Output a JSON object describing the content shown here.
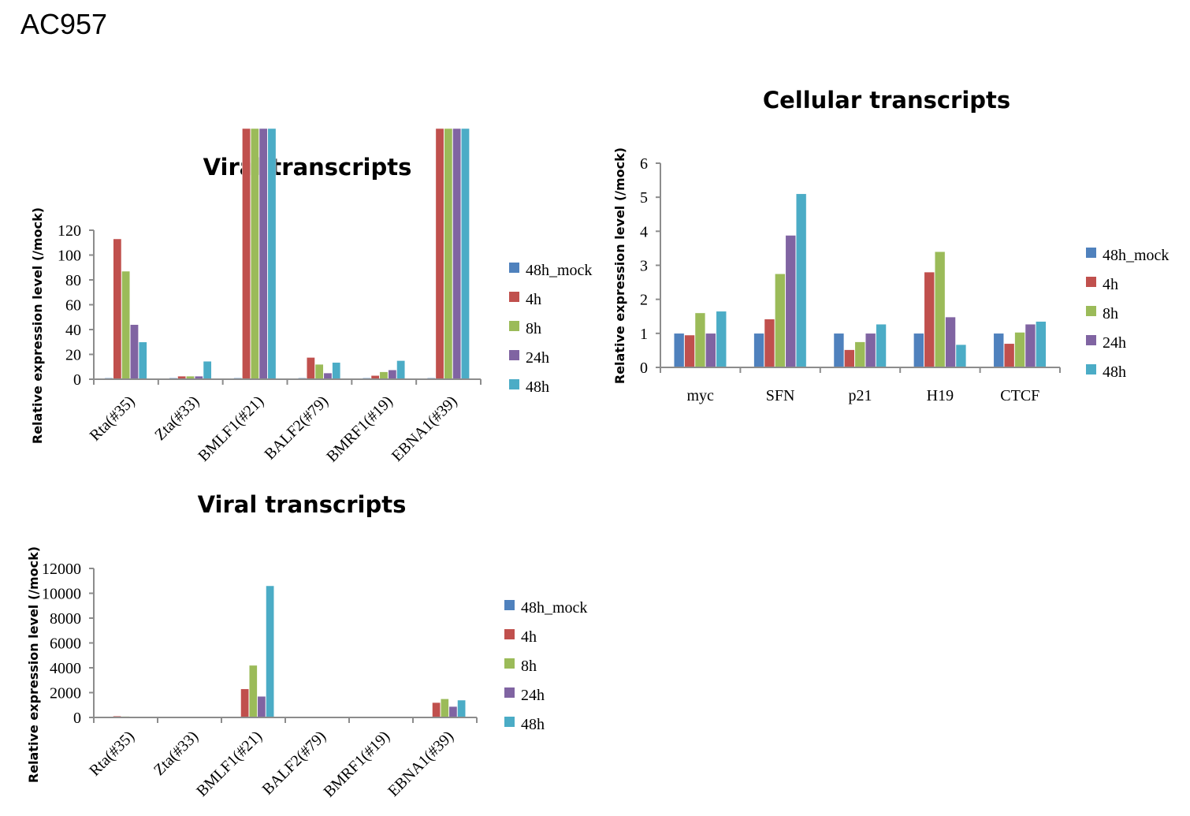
{
  "page": {
    "title": "AC957"
  },
  "legend_colors": [
    "#4f81bd",
    "#c0504d",
    "#9bbb59",
    "#8064a2",
    "#4bacc6"
  ],
  "chart_data": [
    {
      "id": "viral-zoomed",
      "type": "bar",
      "title": "Viral transcripts",
      "xlabel": "",
      "ylabel": "Relative expression level (/mock)",
      "ylim": [
        0,
        120
      ],
      "yticks": [
        "0",
        "20",
        "40",
        "60",
        "80",
        "100",
        "120"
      ],
      "clip_top_value": 201,
      "categories": [
        "Rta(#35)",
        "Zta(#33)",
        "BMLF1(#21)",
        "BALF2(#79)",
        "BMRF1(#19)",
        "EBNA1(#39)"
      ],
      "legend_position": "right",
      "grid": false,
      "series": [
        {
          "name": "48h_mock",
          "values": [
            1,
            1,
            1,
            1,
            1,
            1
          ]
        },
        {
          "name": "4h",
          "values": [
            113,
            2.5,
            2300,
            17.5,
            3,
            1200
          ]
        },
        {
          "name": "8h",
          "values": [
            87,
            2.5,
            4200,
            12,
            6,
            1500
          ]
        },
        {
          "name": "24h",
          "values": [
            44,
            2.5,
            1700,
            5,
            7.5,
            880
          ]
        },
        {
          "name": "48h",
          "values": [
            30,
            14.5,
            10600,
            13.5,
            15,
            1400
          ]
        }
      ]
    },
    {
      "id": "cellular",
      "type": "bar",
      "title": "Cellular transcripts",
      "xlabel": "",
      "ylabel": "Relative expression level (/mock)",
      "ylim": [
        0,
        6
      ],
      "yticks": [
        "0",
        "1",
        "2",
        "3",
        "4",
        "5",
        "6"
      ],
      "categories": [
        "myc",
        "SFN",
        "p21",
        "H19",
        "CTCF"
      ],
      "legend_position": "right",
      "grid": false,
      "series": [
        {
          "name": "48h_mock",
          "values": [
            1,
            1,
            1,
            1,
            1
          ]
        },
        {
          "name": "4h",
          "values": [
            0.95,
            1.42,
            0.52,
            2.8,
            0.7
          ]
        },
        {
          "name": "8h",
          "values": [
            1.6,
            2.75,
            0.75,
            3.4,
            1.03
          ]
        },
        {
          "name": "24h",
          "values": [
            1,
            3.88,
            1,
            1.48,
            1.27
          ]
        },
        {
          "name": "48h",
          "values": [
            1.65,
            5.1,
            1.27,
            0.67,
            1.35
          ]
        }
      ]
    },
    {
      "id": "viral-full",
      "type": "bar",
      "title": "Viral transcripts",
      "xlabel": "",
      "ylabel": "Relative expression level (/mock)",
      "ylim": [
        0,
        12000
      ],
      "yticks": [
        "0",
        "2000",
        "4000",
        "6000",
        "8000",
        "10000",
        "12000"
      ],
      "categories": [
        "Rta(#35)",
        "Zta(#33)",
        "BMLF1(#21)",
        "BALF2(#79)",
        "BMRF1(#19)",
        "EBNA1(#39)"
      ],
      "legend_position": "right",
      "grid": false,
      "series": [
        {
          "name": "48h_mock",
          "values": [
            1,
            1,
            1,
            1,
            1,
            1
          ]
        },
        {
          "name": "4h",
          "values": [
            113,
            2.5,
            2300,
            17.5,
            3,
            1200
          ]
        },
        {
          "name": "8h",
          "values": [
            87,
            2.5,
            4200,
            12,
            6,
            1500
          ]
        },
        {
          "name": "24h",
          "values": [
            44,
            2.5,
            1700,
            5,
            7.5,
            880
          ]
        },
        {
          "name": "48h",
          "values": [
            30,
            14.5,
            10600,
            13.5,
            15,
            1400
          ]
        }
      ]
    }
  ]
}
